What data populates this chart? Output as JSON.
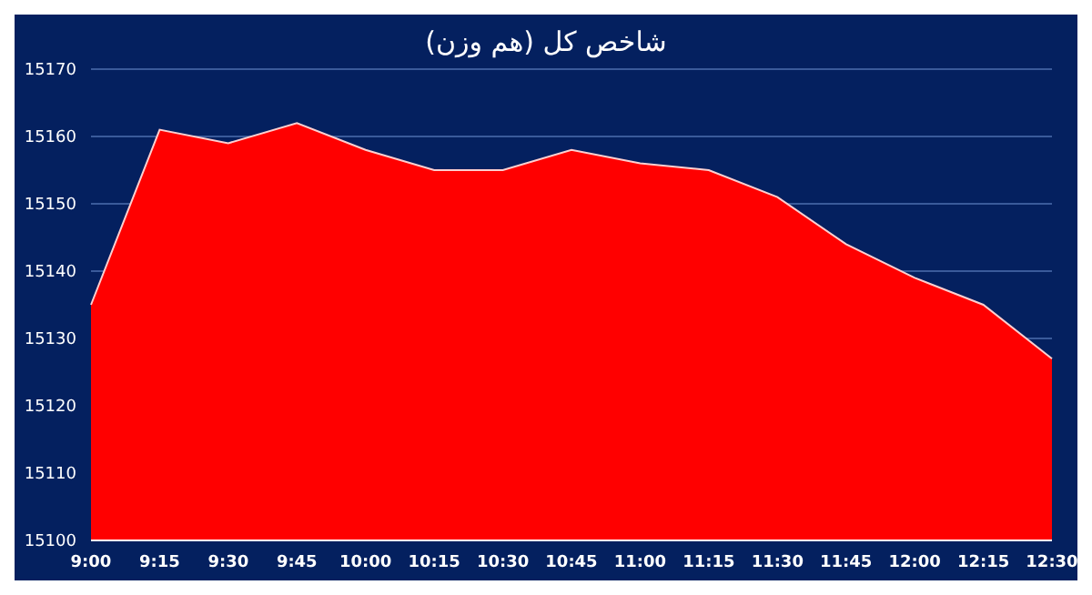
{
  "chart_data": {
    "type": "area",
    "title": "شاخص کل (هم وزن)",
    "categories": [
      "9:00",
      "9:15",
      "9:30",
      "9:45",
      "10:00",
      "10:15",
      "10:30",
      "10:45",
      "11:00",
      "11:15",
      "11:30",
      "11:45",
      "12:00",
      "12:15",
      "12:30"
    ],
    "series": [
      {
        "color": "#ff0000",
        "values": [
          15135,
          15161,
          15159,
          15162,
          15158,
          15155,
          15155,
          15158,
          15156,
          15155,
          15151,
          15144,
          15139,
          15135,
          15127
        ]
      }
    ],
    "ylim": [
      15100,
      15170
    ],
    "yticks": [
      15100,
      15110,
      15120,
      15130,
      15140,
      15150,
      15160,
      15170
    ],
    "grid": "y",
    "legend": false
  }
}
